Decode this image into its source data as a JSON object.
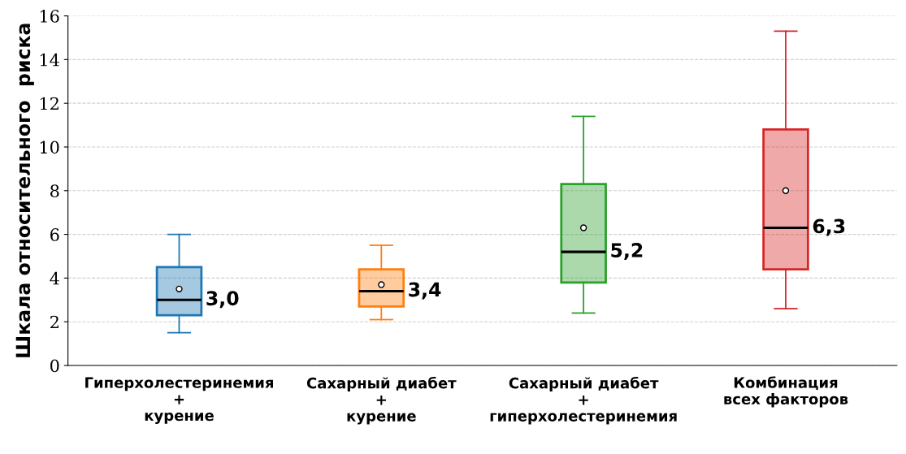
{
  "chart_data": {
    "type": "box",
    "ylabel": "Шкала относительного  риска",
    "categories": [
      "Гиперхолестеринемия\n+\nкурение",
      "Сахарный диабет\n+\nкурение",
      "Сахарный диабет\n+\nгиперхолестеринемия",
      "Комбинация\nвсех факторов"
    ],
    "boxes": [
      {
        "low": 1.5,
        "q1": 2.3,
        "median": 3.0,
        "q3": 4.5,
        "high": 6.0,
        "mean": 3.5
      },
      {
        "low": 2.1,
        "q1": 2.7,
        "median": 3.4,
        "q3": 4.4,
        "high": 5.5,
        "mean": 3.7
      },
      {
        "low": 2.4,
        "q1": 3.8,
        "median": 5.2,
        "q3": 8.3,
        "high": 11.4,
        "mean": 6.3
      },
      {
        "low": 2.6,
        "q1": 4.4,
        "median": 6.3,
        "q3": 10.8,
        "high": 15.3,
        "mean": 8.0
      }
    ],
    "colors": [
      "#1f77b4",
      "#ff7f0e",
      "#2ca02c",
      "#d62728"
    ],
    "value_labels": [
      "3,0",
      "3,4",
      "5,2",
      "6,3"
    ],
    "ylim": [
      0,
      16
    ],
    "yticks": [
      0,
      2,
      4,
      6,
      8,
      10,
      12,
      14,
      16
    ],
    "grid": "y"
  }
}
